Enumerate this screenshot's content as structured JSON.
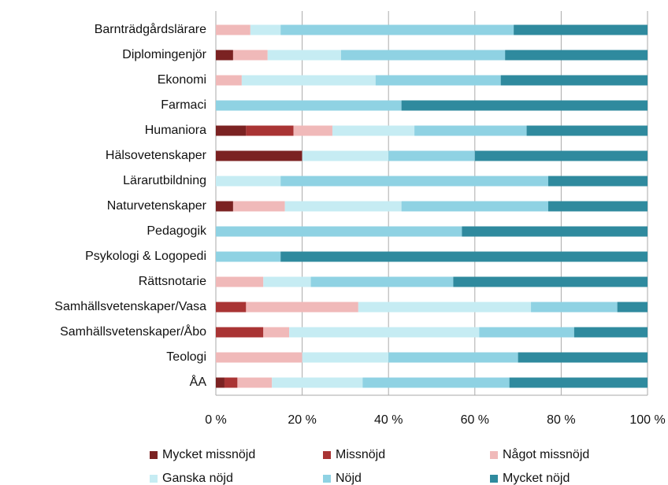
{
  "chart_data": {
    "type": "stacked_bar_horizontal",
    "categories": [
      "Barnträdgårdslärare",
      "Diplomingenjör",
      "Ekonomi",
      "Farmaci",
      "Humaniora",
      "Hälsovetenskaper",
      "Lärarutbildning",
      "Naturvetenskaper",
      "Pedagogik",
      "Psykologi & Logopedi",
      "Rättsnotarie",
      "Samhällsvetenskaper/Vasa",
      "Samhällsvetenskaper/Åbo",
      "Teologi",
      "ÅA"
    ],
    "series": [
      {
        "name": "Mycket missnöjd",
        "color": "#7b2222",
        "values": [
          0,
          4,
          0,
          0,
          7,
          20,
          0,
          4,
          0,
          0,
          0,
          0,
          0,
          0,
          2
        ]
      },
      {
        "name": "Missnöjd",
        "color": "#a93434",
        "values": [
          0,
          0,
          0,
          0,
          11,
          0,
          0,
          0,
          0,
          0,
          0,
          7,
          11,
          0,
          3
        ]
      },
      {
        "name": "Något missnöjd",
        "color": "#f0b9b9",
        "values": [
          8,
          8,
          6,
          0,
          9,
          0,
          0,
          12,
          0,
          0,
          11,
          26,
          6,
          20,
          8
        ]
      },
      {
        "name": "Ganska nöjd",
        "color": "#c6ecf3",
        "values": [
          7,
          17,
          31,
          0,
          19,
          20,
          15,
          27,
          0,
          0,
          11,
          40,
          44,
          20,
          21
        ]
      },
      {
        "name": "Nöjd",
        "color": "#8fd2e3",
        "values": [
          54,
          38,
          29,
          43,
          26,
          20,
          62,
          34,
          57,
          15,
          33,
          20,
          22,
          30,
          34
        ]
      },
      {
        "name": "Mycket nöjd",
        "color": "#2f8a9e",
        "values": [
          31,
          33,
          34,
          57,
          28,
          40,
          23,
          23,
          43,
          85,
          45,
          7,
          17,
          30,
          32
        ]
      }
    ],
    "xlim": [
      0,
      100
    ],
    "xticks": [
      {
        "value": 0,
        "label": "0 %"
      },
      {
        "value": 20,
        "label": "20 %"
      },
      {
        "value": 40,
        "label": "40 %"
      },
      {
        "value": 60,
        "label": "60 %"
      },
      {
        "value": 80,
        "label": "80 %"
      },
      {
        "value": 100,
        "label": "100 %"
      }
    ],
    "grid": true,
    "legend": "bottom"
  }
}
